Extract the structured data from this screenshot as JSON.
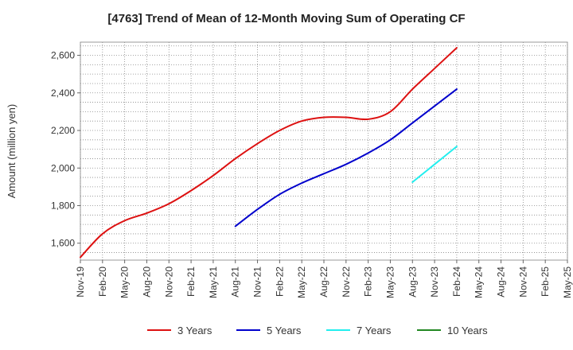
{
  "chart_data": {
    "type": "line",
    "title": "[4763]  Trend of Mean of 12-Month Moving Sum of Operating CF",
    "ylabel": "Amount (million yen)",
    "xlabel": "",
    "ylim": [
      1510,
      2670
    ],
    "yticks": [
      1600,
      1800,
      2000,
      2200,
      2400,
      2600
    ],
    "ytick_labels": [
      "1,600",
      "1,800",
      "2,000",
      "2,200",
      "2,400",
      "2,600"
    ],
    "x_categories": [
      "Nov-19",
      "Feb-20",
      "May-20",
      "Aug-20",
      "Nov-20",
      "Feb-21",
      "May-21",
      "Aug-21",
      "Nov-21",
      "Feb-22",
      "May-22",
      "Aug-22",
      "Nov-22",
      "Feb-23",
      "May-23",
      "Aug-23",
      "Nov-23",
      "Feb-24",
      "May-24",
      "Aug-24",
      "Nov-24",
      "Feb-25",
      "May-25"
    ],
    "grid": true,
    "legend_position": "bottom",
    "series": [
      {
        "name": "3 Years",
        "color": "#dd1111",
        "values": [
          1525,
          1650,
          1720,
          1760,
          1810,
          1880,
          1960,
          2050,
          2130,
          2200,
          2250,
          2270,
          2270,
          2260,
          2300,
          2420,
          2530,
          2640,
          null,
          null,
          null,
          null,
          null
        ]
      },
      {
        "name": "5 Years",
        "color": "#0000cc",
        "values": [
          null,
          null,
          null,
          null,
          null,
          null,
          null,
          1690,
          1780,
          1860,
          1920,
          1970,
          2020,
          2080,
          2150,
          2240,
          2330,
          2420,
          null,
          null,
          null,
          null,
          null
        ]
      },
      {
        "name": "7 Years",
        "color": "#22eeee",
        "values": [
          null,
          null,
          null,
          null,
          null,
          null,
          null,
          null,
          null,
          null,
          null,
          null,
          null,
          null,
          null,
          1925,
          2020,
          2115,
          null,
          null,
          null,
          null,
          null
        ]
      },
      {
        "name": "10 Years",
        "color": "#228822",
        "values": [
          null,
          null,
          null,
          null,
          null,
          null,
          null,
          null,
          null,
          null,
          null,
          null,
          null,
          null,
          null,
          null,
          null,
          null,
          null,
          null,
          null,
          null,
          null
        ]
      }
    ]
  }
}
